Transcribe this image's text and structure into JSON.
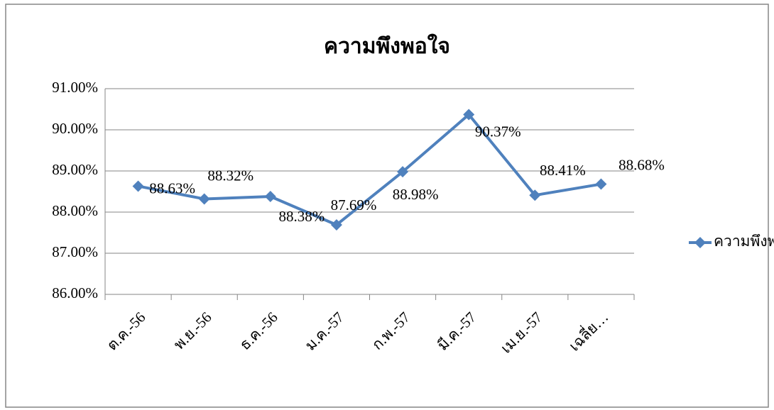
{
  "chart_data": {
    "type": "line",
    "title": "ความพึงพอใจ",
    "categories": [
      "ต.ค.-56",
      "พ.ย.-56",
      "ธ.ค.-56",
      "ม.ค.-57",
      "ก.พ.-57",
      "มี.ค.-57",
      "เม.ย.-57",
      "เฉลี่ย…"
    ],
    "series": [
      {
        "name": "ความพึงพอใจ",
        "color": "#4f81bd",
        "values": [
          88.63,
          88.32,
          88.38,
          87.69,
          88.98,
          90.37,
          88.41,
          88.68
        ],
        "value_labels": [
          "88.63%",
          "88.32%",
          "88.38%",
          "87.69%",
          "88.98%",
          "90.37%",
          "88.41%",
          "88.68%"
        ]
      }
    ],
    "ylim": [
      86,
      91
    ],
    "yticks": [
      {
        "value": 86,
        "label": "86.00%"
      },
      {
        "value": 87,
        "label": "87.00%"
      },
      {
        "value": 88,
        "label": "88.00%"
      },
      {
        "value": 89,
        "label": "89.00%"
      },
      {
        "value": 90,
        "label": "90.00%"
      },
      {
        "value": 91,
        "label": "91.00%"
      }
    ],
    "grid": true,
    "legend": "right"
  }
}
